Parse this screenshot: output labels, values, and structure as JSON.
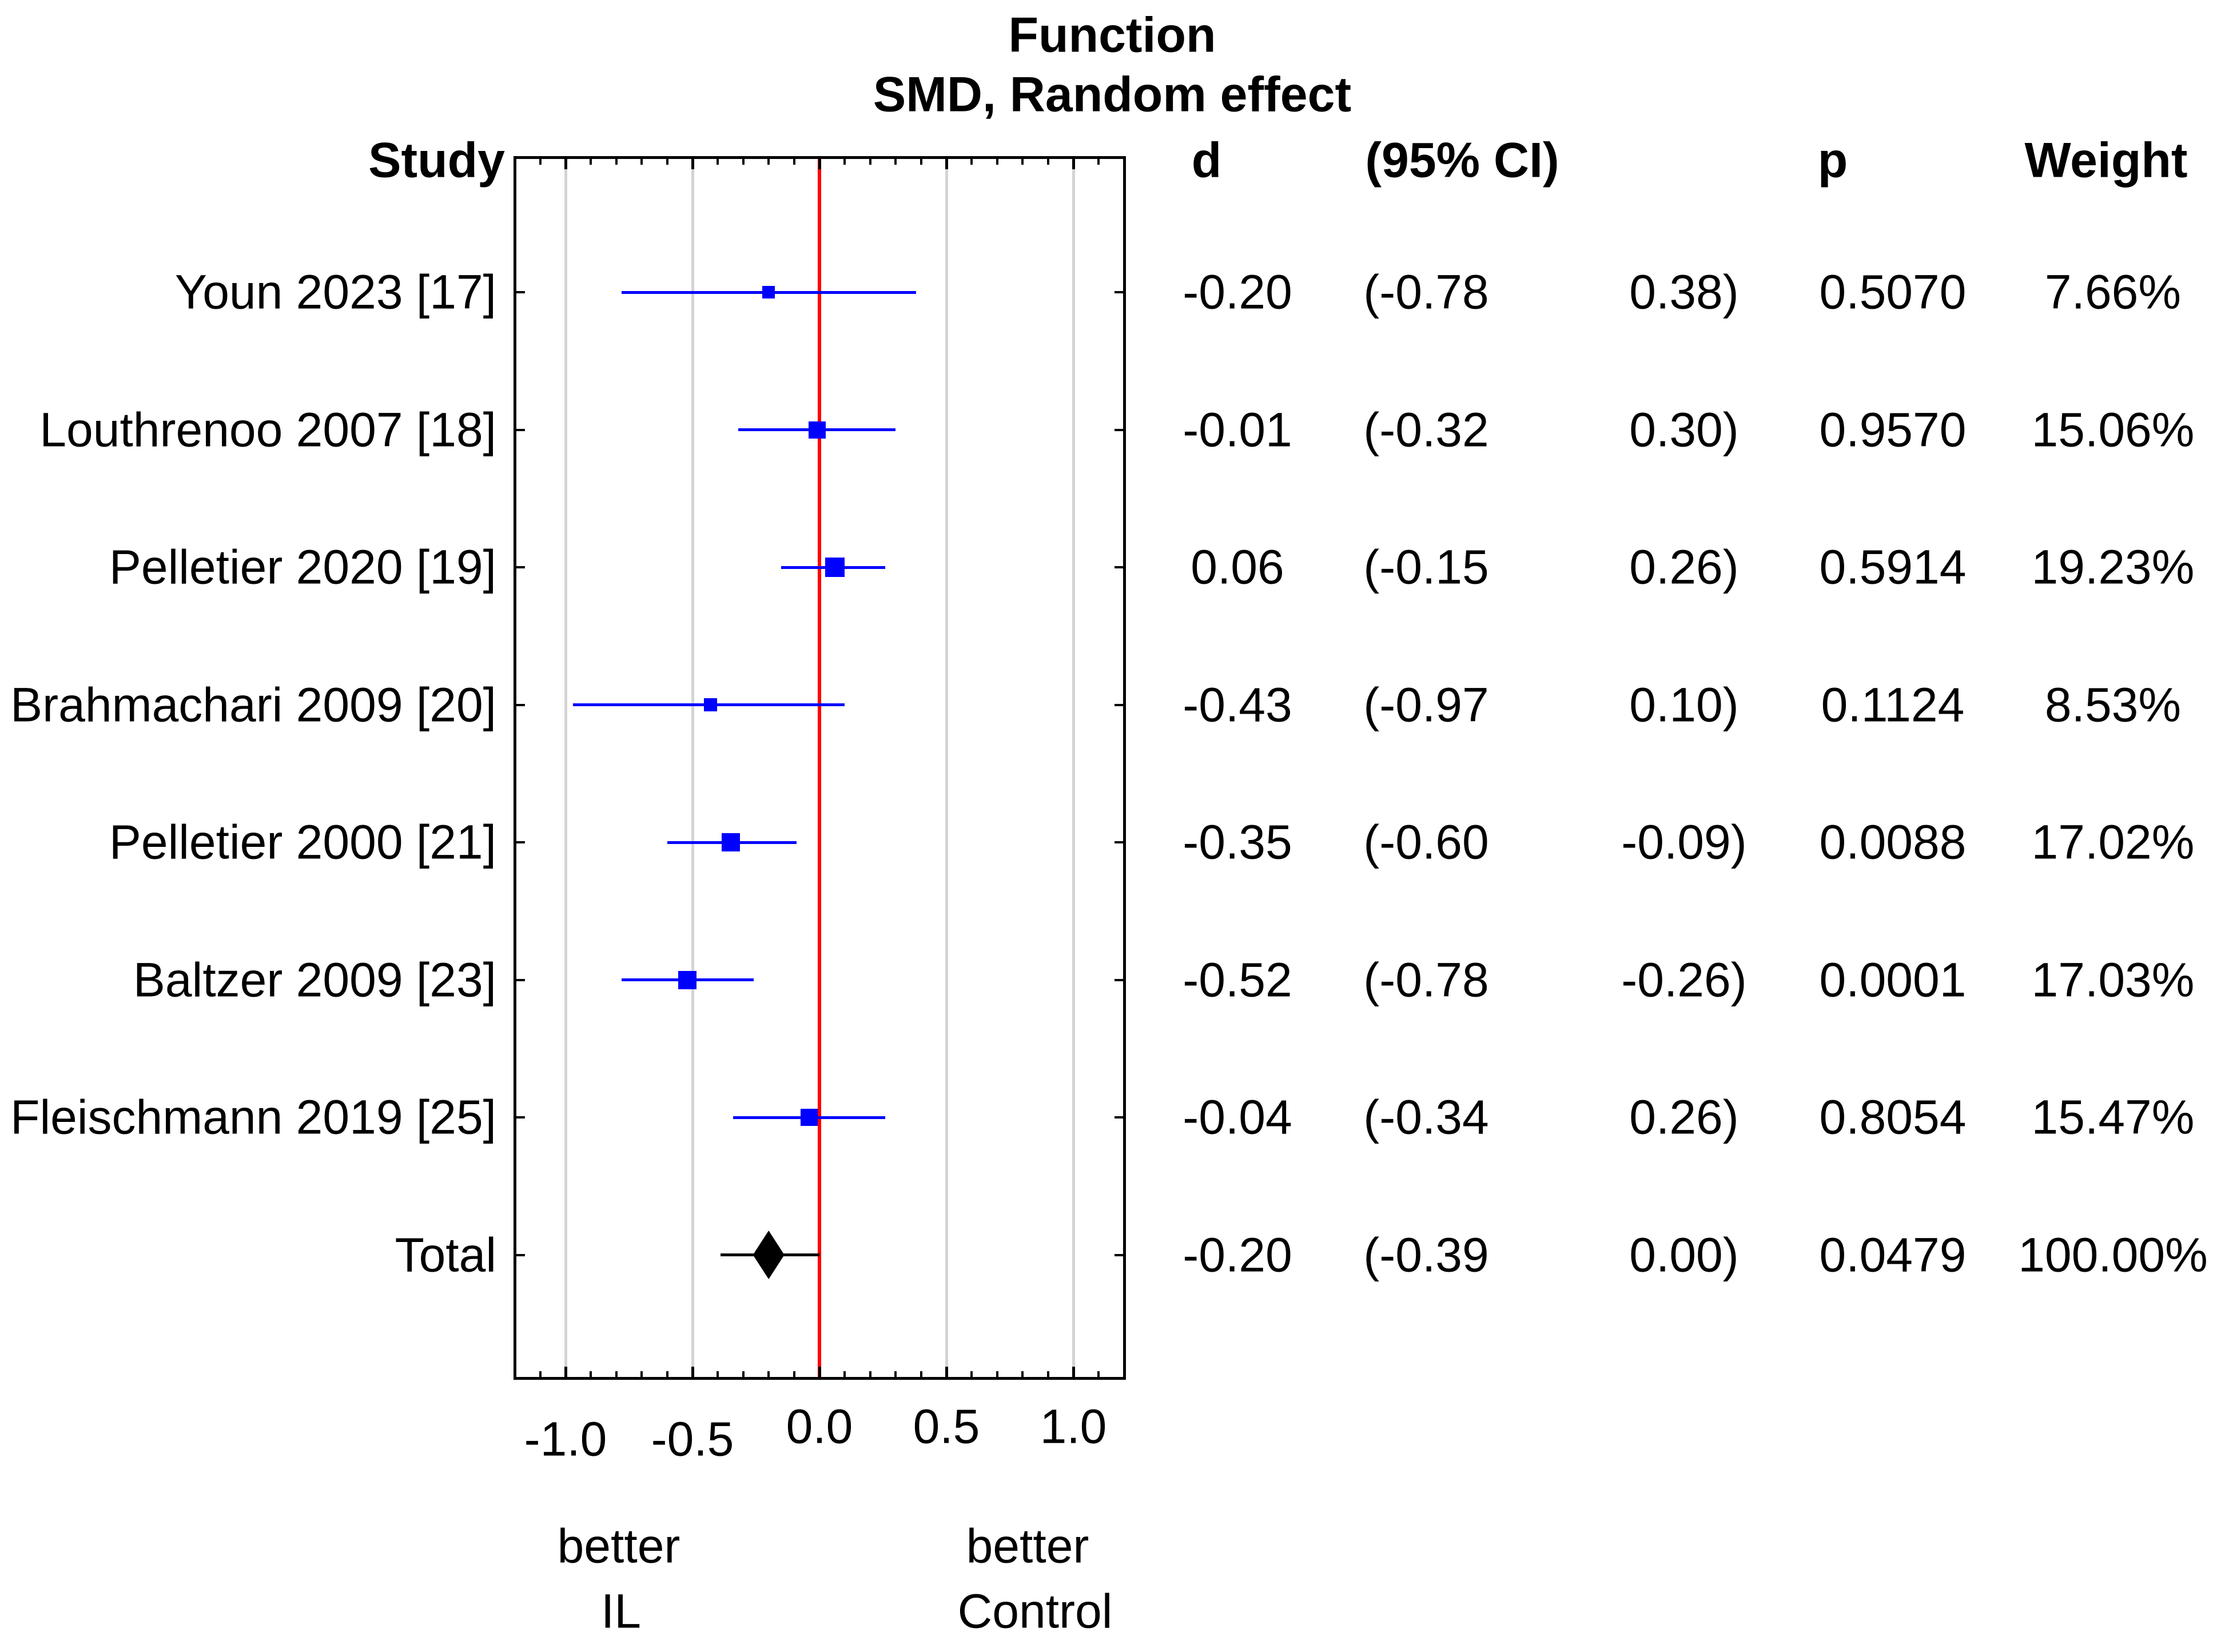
{
  "title": {
    "line1": "Function",
    "line2": "SMD, Random effect"
  },
  "columns": {
    "study": "Study",
    "d": "d",
    "ci": "(95% CI)",
    "p": "p",
    "weight": "Weight"
  },
  "axis": {
    "better_left": {
      "line1": "better",
      "line2": "IL"
    },
    "better_right": {
      "line1": "better",
      "line2": "Control"
    }
  },
  "chart_data": {
    "type": "forest",
    "title": "Function",
    "subtitle": "SMD, Random effect",
    "xlim": [
      -1.2,
      1.2
    ],
    "x_major_ticks": [
      -1.0,
      -0.5,
      0.0,
      0.5,
      1.0
    ],
    "x_tick_labels": [
      "-1.0",
      "-0.5",
      "0.0",
      "0.5",
      "1.0"
    ],
    "x_minor_tick_step": 0.1,
    "grid_values": [
      -1.0,
      -0.5,
      0.5,
      1.0
    ],
    "zero_line_value": 0.0,
    "colors": {
      "study_marker": "#0000ff",
      "study_line": "#0000ff",
      "total_marker": "#000000",
      "total_line": "#000000",
      "zero_line": "#ff0000",
      "gridline": "#d4d4d4",
      "frame": "#000000",
      "text": "#000000"
    },
    "rows": [
      {
        "study": "Youn 2023 [17]",
        "d": -0.2,
        "ci_low": -0.78,
        "ci_high": 0.38,
        "d_text": "-0.20",
        "ci_low_text": "(-0.78",
        "ci_high_text": "0.38)",
        "p_text": "0.5070",
        "weight_text": "7.66%",
        "marker": "square",
        "marker_px": 22
      },
      {
        "study": "Louthrenoo 2007 [18]",
        "d": -0.01,
        "ci_low": -0.32,
        "ci_high": 0.3,
        "d_text": "-0.01",
        "ci_low_text": "(-0.32",
        "ci_high_text": "0.30)",
        "p_text": "0.9570",
        "weight_text": "15.06%",
        "marker": "square",
        "marker_px": 30
      },
      {
        "study": "Pelletier 2020 [19]",
        "d": 0.06,
        "ci_low": -0.15,
        "ci_high": 0.26,
        "d_text": "0.06",
        "ci_low_text": "(-0.15",
        "ci_high_text": "0.26)",
        "p_text": "0.5914",
        "weight_text": "19.23%",
        "marker": "square",
        "marker_px": 34
      },
      {
        "study": "Brahmachari 2009 [20]",
        "d": -0.43,
        "ci_low": -0.97,
        "ci_high": 0.1,
        "d_text": "-0.43",
        "ci_low_text": "(-0.97",
        "ci_high_text": "0.10)",
        "p_text": "0.1124",
        "weight_text": "8.53%",
        "marker": "square",
        "marker_px": 23
      },
      {
        "study": "Pelletier 2000 [21]",
        "d": -0.35,
        "ci_low": -0.6,
        "ci_high": -0.09,
        "d_text": "-0.35",
        "ci_low_text": "(-0.60",
        "ci_high_text": "-0.09)",
        "p_text": "0.0088",
        "weight_text": "17.02%",
        "marker": "square",
        "marker_px": 32
      },
      {
        "study": "Baltzer 2009 [23]",
        "d": -0.52,
        "ci_low": -0.78,
        "ci_high": -0.26,
        "d_text": "-0.52",
        "ci_low_text": "(-0.78",
        "ci_high_text": "-0.26)",
        "p_text": "0.0001",
        "weight_text": "17.03%",
        "marker": "square",
        "marker_px": 32
      },
      {
        "study": "Fleischmann 2019 [25]",
        "d": -0.04,
        "ci_low": -0.34,
        "ci_high": 0.26,
        "d_text": "-0.04",
        "ci_low_text": "(-0.34",
        "ci_high_text": "0.26)",
        "p_text": "0.8054",
        "weight_text": "15.47%",
        "marker": "square",
        "marker_px": 30
      },
      {
        "study": "Total",
        "d": -0.2,
        "ci_low": -0.39,
        "ci_high": 0.0,
        "d_text": "-0.20",
        "ci_low_text": "(-0.39",
        "ci_high_text": "0.00)",
        "p_text": "0.0479",
        "weight_text": "100.00%",
        "marker": "diamond",
        "marker_w": 55,
        "marker_h": 85
      }
    ]
  }
}
